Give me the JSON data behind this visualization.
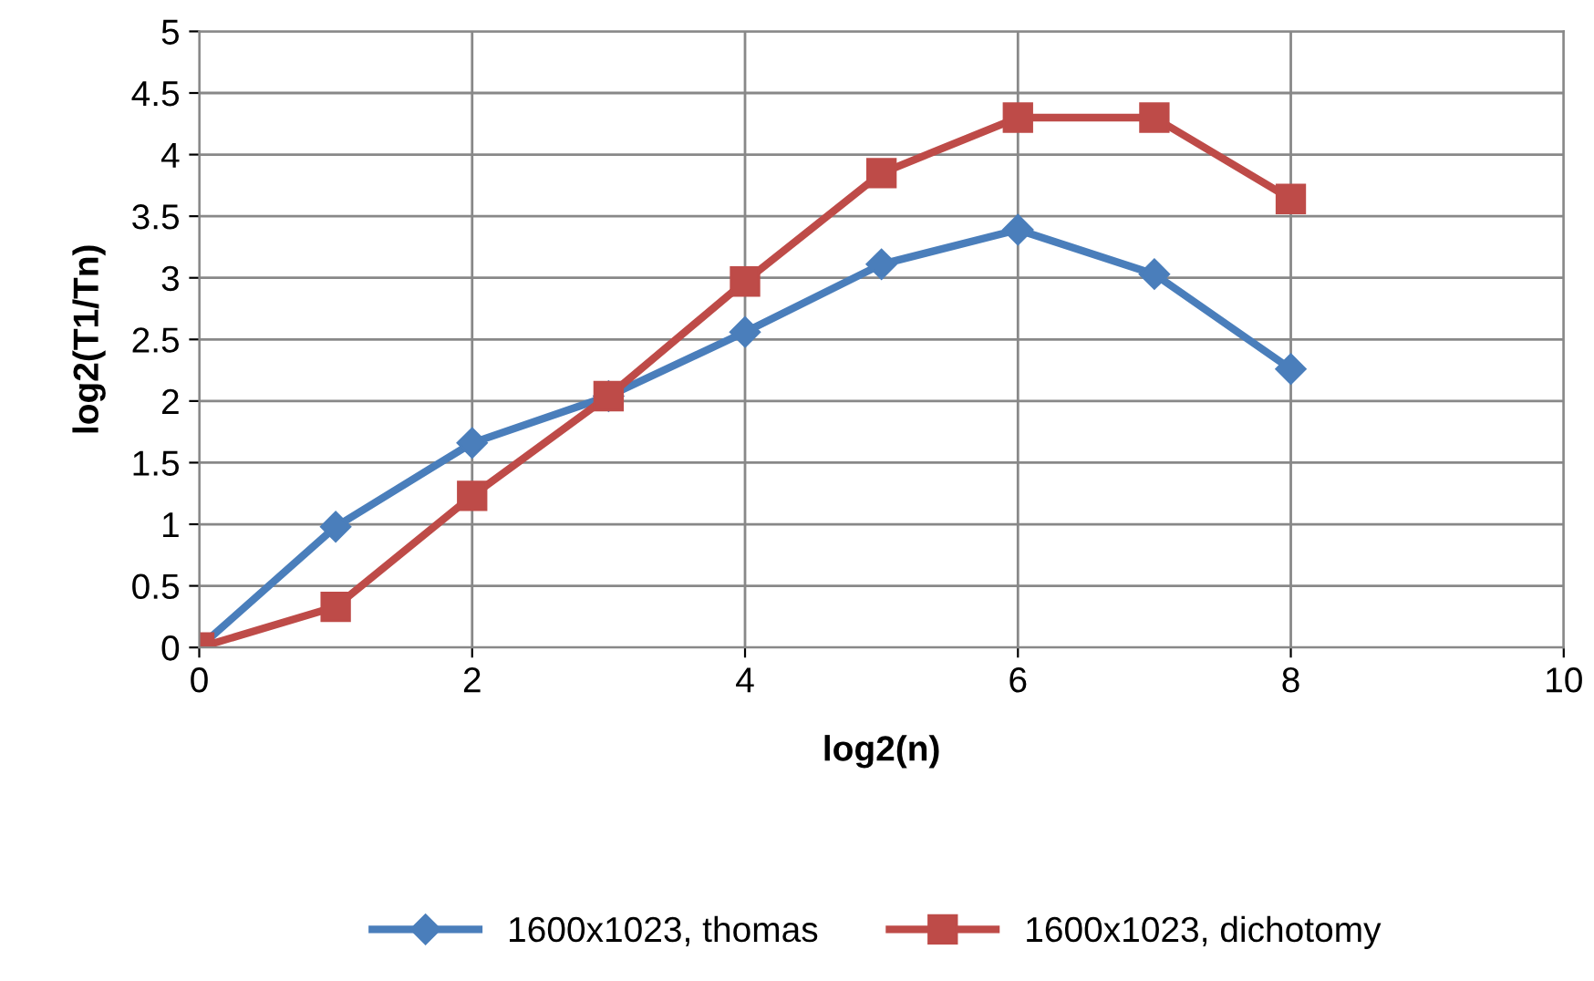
{
  "chart_data": {
    "type": "line",
    "xlabel": "log2(n)",
    "ylabel": "log2(T1/Tn)",
    "xlim": [
      0,
      10
    ],
    "xticks": [
      0,
      2,
      4,
      6,
      8,
      10
    ],
    "ylim": [
      0,
      5
    ],
    "yticks": [
      0,
      0.5,
      1,
      1.5,
      2,
      2.5,
      3,
      3.5,
      4,
      4.5,
      5
    ],
    "grid": true,
    "legend": "bottom",
    "line_style": "solid",
    "series": [
      {
        "name": "1600x1023, thomas",
        "color": "#4a7ebb",
        "marker": "diamond",
        "x": [
          0,
          1,
          2,
          3,
          4,
          5,
          6,
          7,
          8
        ],
        "values": [
          0,
          0.98,
          1.66,
          2.04,
          2.56,
          3.11,
          3.39,
          3.03,
          2.26
        ]
      },
      {
        "name": "1600x1023, dichotomy",
        "color": "#be4b48",
        "marker": "square",
        "x": [
          0,
          1,
          2,
          3,
          4,
          5,
          6,
          7,
          8
        ],
        "values": [
          0,
          0.33,
          1.23,
          2.04,
          2.97,
          3.85,
          4.3,
          4.3,
          3.64
        ]
      }
    ]
  }
}
